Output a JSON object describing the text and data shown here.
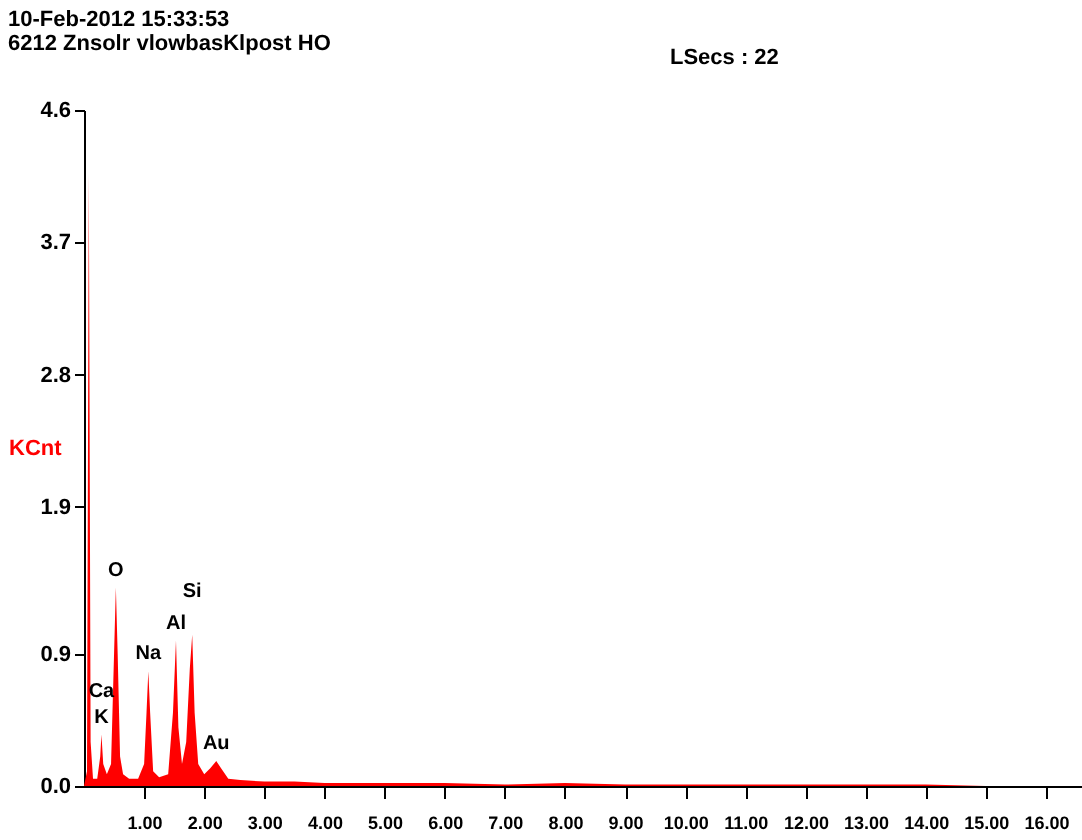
{
  "chart_data": {
    "type": "area",
    "title": "10-Feb-2012 15:33:53",
    "subtitle": "6212  Znsolr vlowbasKlpost HO",
    "ylabel": "KCnt",
    "annotations": [
      "LSecs :  22",
      {
        "text": "K",
        "x": 0.29,
        "y": 0.35
      },
      {
        "text": "Ca",
        "x": 0.29,
        "y": 0.35
      },
      {
        "text": "O",
        "x": 0.53,
        "y": 1.35
      },
      {
        "text": "Na",
        "x": 1.07,
        "y": 0.78
      },
      {
        "text": "Al",
        "x": 1.53,
        "y": 0.99
      },
      {
        "text": "Si",
        "x": 1.8,
        "y": 1.03
      },
      {
        "text": "Au",
        "x": 2.2,
        "y": 0.17
      }
    ],
    "x": [
      0,
      0.05,
      0.08,
      0.11,
      0.15,
      0.22,
      0.27,
      0.29,
      0.32,
      0.38,
      0.45,
      0.5,
      0.53,
      0.56,
      0.6,
      0.65,
      0.75,
      0.9,
      1.0,
      1.04,
      1.07,
      1.1,
      1.15,
      1.25,
      1.4,
      1.48,
      1.53,
      1.57,
      1.63,
      1.7,
      1.76,
      1.8,
      1.84,
      1.9,
      2.0,
      2.1,
      2.2,
      2.28,
      2.4,
      2.6,
      3,
      3.5,
      4,
      5,
      6,
      7,
      8,
      9,
      10,
      11,
      12,
      13,
      14,
      15,
      16,
      16.6
    ],
    "series": [
      {
        "color": "#ff0000",
        "values": [
          0,
          0.1,
          4.17,
          0.3,
          0.05,
          0.05,
          0.2,
          0.35,
          0.15,
          0.08,
          0.15,
          0.9,
          1.35,
          0.9,
          0.2,
          0.08,
          0.05,
          0.05,
          0.15,
          0.5,
          0.78,
          0.5,
          0.1,
          0.06,
          0.08,
          0.5,
          0.99,
          0.4,
          0.15,
          0.3,
          0.8,
          1.03,
          0.5,
          0.15,
          0.08,
          0.12,
          0.17,
          0.12,
          0.05,
          0.04,
          0.03,
          0.03,
          0.02,
          0.02,
          0.02,
          0.01,
          0.02,
          0.01,
          0.01,
          0.01,
          0.01,
          0.01,
          0.01,
          0,
          0,
          0
        ]
      }
    ],
    "xlim": [
      0,
      16.6
    ],
    "xticks": [
      {
        "value": 1,
        "label": "1.00"
      },
      {
        "value": 2,
        "label": "2.00"
      },
      {
        "value": 3,
        "label": "3.00"
      },
      {
        "value": 4,
        "label": "4.00"
      },
      {
        "value": 5,
        "label": "5.00"
      },
      {
        "value": 6,
        "label": "6.00"
      },
      {
        "value": 7,
        "label": "7.00"
      },
      {
        "value": 8,
        "label": "8.00"
      },
      {
        "value": 9,
        "label": "9.00"
      },
      {
        "value": 10,
        "label": "10.00"
      },
      {
        "value": 11,
        "label": "11.00"
      },
      {
        "value": 12,
        "label": "12.00"
      },
      {
        "value": 13,
        "label": "13.00"
      },
      {
        "value": 14,
        "label": "14.00"
      },
      {
        "value": 15,
        "label": "15.00"
      },
      {
        "value": 16,
        "label": "16.00"
      }
    ],
    "ylim": [
      0,
      4.6
    ],
    "yticks": [
      {
        "value": 0,
        "label": "0.0"
      },
      0.9,
      1.9,
      2.8,
      3.7,
      4.6
    ],
    "grid": false
  }
}
